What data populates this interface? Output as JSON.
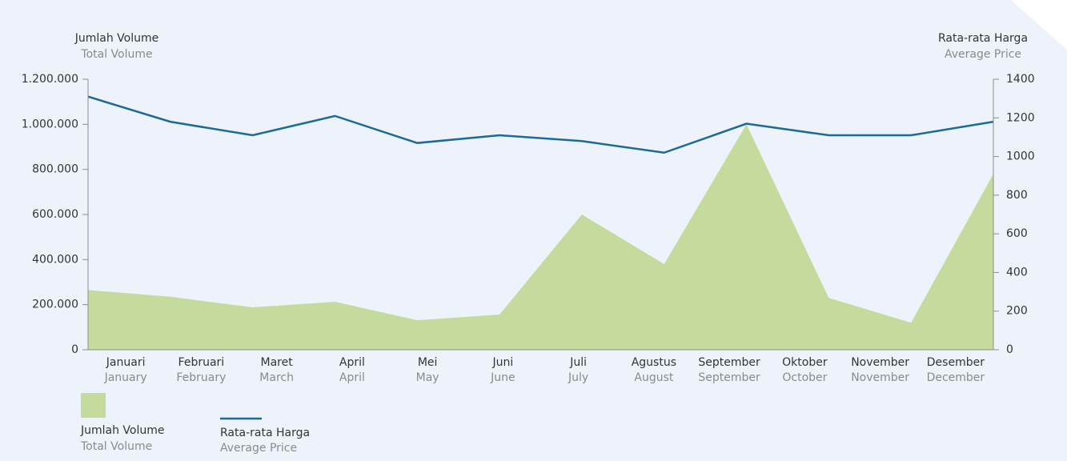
{
  "chart_data": {
    "type": "area-line",
    "y_label": "Jumlah Volume",
    "y_label_en": "Total Volume",
    "y2_label": "Rata-rata Harga",
    "y2_label_en": "Average Price",
    "categories": [
      "Januari",
      "Februari",
      "Maret",
      "April",
      "Mei",
      "Juni",
      "Juli",
      "Agustus",
      "September",
      "Oktober",
      "November",
      "Desember"
    ],
    "categories_en": [
      "January",
      "February",
      "March",
      "April",
      "May",
      "June",
      "July",
      "August",
      "September",
      "October",
      "November",
      "December"
    ],
    "series": [
      {
        "name": "Jumlah Volume",
        "name_en": "Total Volume",
        "color": "#c5db9d",
        "axis": "y",
        "values": [
          265000,
          235000,
          188000,
          213000,
          131000,
          156000,
          600000,
          380000,
          1000000,
          230000,
          120000,
          780000
        ]
      },
      {
        "name": "Rata-rata Harga",
        "name_en": "Average Price",
        "color": "#1b6a97",
        "axis": "y2",
        "values": [
          1310,
          1180,
          1110,
          1210,
          1070,
          1110,
          1080,
          1020,
          1170,
          1110,
          1110,
          1180
        ]
      }
    ],
    "ylim": [
      0,
      1200000
    ],
    "yticks": [
      0,
      {
        "value": 200000,
        "label": "200.000"
      },
      {
        "value": 400000,
        "label": "400.000"
      },
      {
        "value": 600000,
        "label": "600.000"
      },
      {
        "value": 800000,
        "label": "800.000"
      },
      {
        "value": 1000000,
        "label": "1.000.000"
      },
      {
        "value": 1200000,
        "label": "1.200.000"
      }
    ],
    "y2lim": [
      0,
      1400
    ],
    "y2ticks": [
      0,
      200,
      400,
      600,
      800,
      1000,
      1200,
      1400
    ]
  }
}
